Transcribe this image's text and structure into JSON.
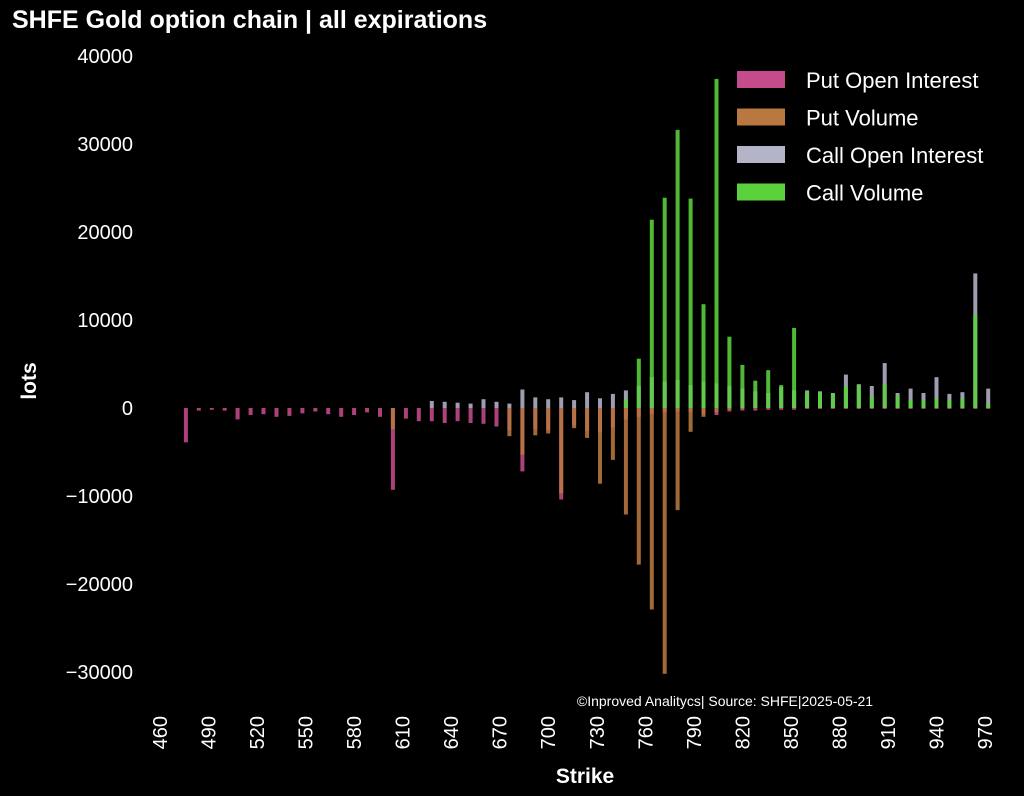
{
  "chart_data": {
    "type": "bar",
    "title": "SHFE Gold option chain | all expirations",
    "xlabel": "Strike",
    "ylabel": "lots",
    "ylim": [
      -31000,
      40000
    ],
    "xlim": [
      456,
      974
    ],
    "yticks": [
      40000,
      30000,
      20000,
      10000,
      0,
      -10000,
      -20000,
      -30000
    ],
    "xticks": [
      460,
      490,
      520,
      550,
      580,
      610,
      640,
      670,
      700,
      730,
      760,
      790,
      820,
      850,
      880,
      910,
      940,
      970
    ],
    "legend_position": "top-right",
    "annotation": "©Inproved Analitycs| Source: SHFE|2025-05-21",
    "grid": false,
    "strikes": [
      476,
      484,
      492,
      500,
      508,
      516,
      524,
      532,
      540,
      548,
      556,
      564,
      572,
      580,
      588,
      596,
      604,
      612,
      620,
      628,
      636,
      644,
      652,
      660,
      668,
      676,
      684,
      692,
      700,
      708,
      716,
      724,
      732,
      740,
      748,
      756,
      764,
      772,
      780,
      788,
      796,
      804,
      812,
      820,
      828,
      836,
      844,
      852,
      860,
      868,
      876,
      884,
      892,
      900,
      908,
      916,
      924,
      932,
      940,
      948,
      956,
      964,
      972
    ],
    "series": [
      {
        "name": "Put Open Interest",
        "color": "#c54b8c",
        "sign": -1,
        "values": [
          3900,
          300,
          200,
          300,
          1300,
          800,
          700,
          1000,
          900,
          600,
          400,
          700,
          1000,
          800,
          500,
          1000,
          9300,
          1200,
          1500,
          1500,
          1700,
          1500,
          1700,
          1800,
          2100,
          2500,
          7200,
          2400,
          2500,
          10400,
          2000,
          2600,
          2800,
          2200,
          1300,
          1000,
          700,
          500,
          400,
          500,
          700,
          800,
          400,
          300,
          300,
          200,
          200,
          200,
          100,
          100,
          100,
          100,
          100,
          100,
          100,
          100,
          100,
          100,
          100,
          100,
          100,
          100,
          100
        ]
      },
      {
        "name": "Put Volume",
        "color": "#b87840",
        "sign": -1,
        "values": [
          0,
          0,
          0,
          0,
          0,
          0,
          0,
          0,
          0,
          0,
          0,
          0,
          0,
          0,
          0,
          0,
          2400,
          0,
          0,
          0,
          0,
          0,
          0,
          0,
          0,
          3200,
          5300,
          3100,
          2900,
          9700,
          2300,
          3400,
          8600,
          5900,
          12100,
          17800,
          22900,
          30200,
          11600,
          2700,
          1000,
          500,
          200,
          100,
          0,
          0,
          0,
          0,
          0,
          0,
          0,
          0,
          0,
          0,
          0,
          0,
          0,
          0,
          0,
          0,
          0,
          0,
          0
        ]
      },
      {
        "name": "Call Open Interest",
        "color": "#b4b4c8",
        "sign": 1,
        "values": [
          0,
          0,
          0,
          0,
          0,
          0,
          0,
          0,
          0,
          0,
          0,
          0,
          0,
          0,
          0,
          0,
          0,
          0,
          0,
          800,
          700,
          600,
          500,
          1000,
          700,
          500,
          2100,
          1200,
          1000,
          1200,
          900,
          1800,
          1100,
          1600,
          2000,
          2500,
          3500,
          3000,
          3200,
          2600,
          3000,
          2800,
          2500,
          2200,
          1900,
          1700,
          2400,
          2000,
          2000,
          1900,
          1700,
          3800,
          2700,
          2500,
          5100,
          1700,
          2200,
          1700,
          3500,
          1600,
          1800,
          15300,
          2200
        ]
      },
      {
        "name": "Call Volume",
        "color": "#5bd13c",
        "sign": 1,
        "values": [
          0,
          0,
          0,
          0,
          0,
          0,
          0,
          0,
          0,
          0,
          0,
          0,
          0,
          0,
          0,
          0,
          0,
          0,
          0,
          0,
          0,
          0,
          0,
          0,
          0,
          0,
          0,
          0,
          0,
          0,
          0,
          0,
          0,
          0,
          1000,
          5600,
          21400,
          23900,
          31600,
          23800,
          11800,
          37400,
          8100,
          4900,
          3100,
          4300,
          2600,
          9100,
          1800,
          1800,
          1600,
          2500,
          2600,
          1300,
          2700,
          1400,
          900,
          900,
          1100,
          900,
          1100,
          10600,
          500
        ]
      }
    ]
  }
}
